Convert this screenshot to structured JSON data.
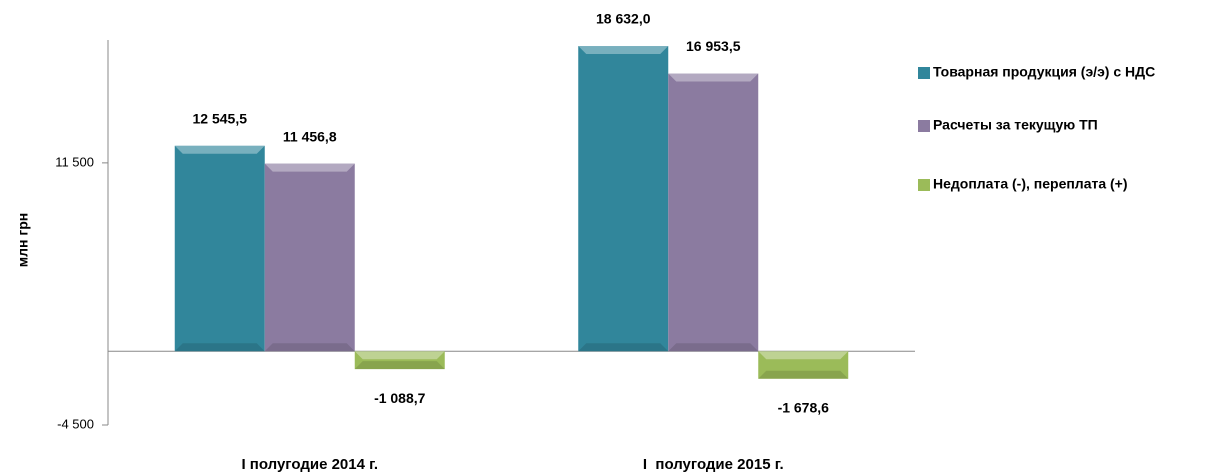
{
  "chart_data": {
    "type": "bar",
    "y_label": "млн грн",
    "categories": [
      "I полугодие 2014 г.",
      "I  полугодие 2015 г."
    ],
    "series": [
      {
        "name": "Товарная продукция (э/э) с НДС",
        "color": "#31869b",
        "values": [
          12545.5,
          18632.0
        ],
        "value_labels": [
          "12 545,5",
          "18 632,0"
        ]
      },
      {
        "name": "Расчеты за текущую ТП",
        "color": "#8b7ba0",
        "values": [
          11456.8,
          16953.5
        ],
        "value_labels": [
          "11 456,8",
          "16 953,5"
        ]
      },
      {
        "name": "Недоплата (-), переплата (+)",
        "color": "#9bbb59",
        "values": [
          -1088.7,
          -1678.6
        ],
        "value_labels": [
          "-1 088,7",
          "-1 678,6"
        ]
      }
    ],
    "ylim": [
      -4500,
      19000
    ],
    "yticks": [
      {
        "value": -4500,
        "label": "-4 500"
      },
      {
        "value": 11500,
        "label": "11 500"
      }
    ],
    "legend": "right"
  }
}
